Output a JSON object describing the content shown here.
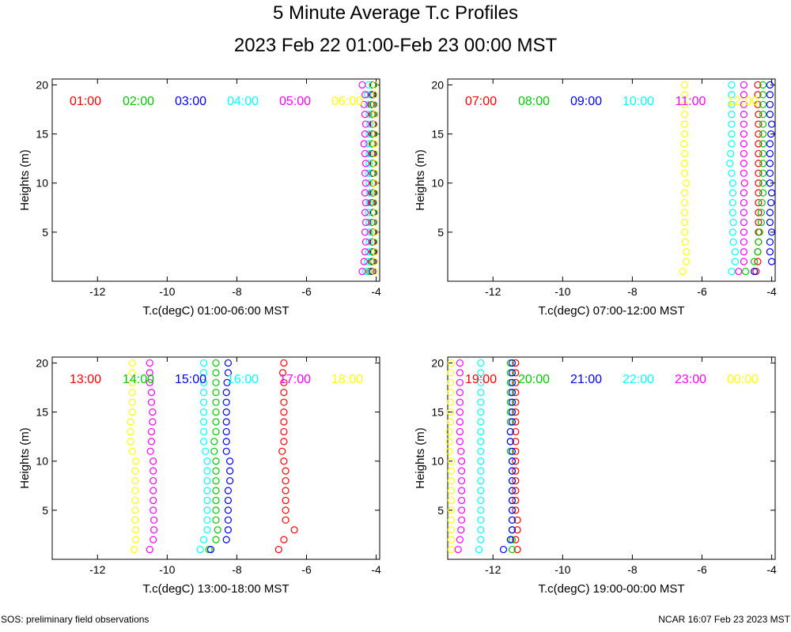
{
  "title": "5 Minute Average T.c Profiles",
  "subtitle": "2023 Feb 22 01:00-Feb 23 00:00 MST",
  "footer_left": "SOS: preliminary field observations",
  "footer_right": "NCAR 16:07 Feb 23 2023 MST",
  "chart_data": [
    {
      "type": "scatter",
      "xlabel": "T.c(degC) 01:00-06:00 MST",
      "ylabel": "Heights (m)",
      "xlim": [
        -13.3,
        -3.9
      ],
      "ylim": [
        0,
        20.6
      ],
      "xticks": [
        -12,
        -10,
        -8,
        -6,
        -4
      ],
      "yticks": [
        5,
        10,
        15,
        20
      ],
      "series": [
        {
          "name": "01:00",
          "color": "#ff0000",
          "x": [
            -4.15,
            -4.12,
            -4.1,
            -4.12,
            -4.1,
            -4.13,
            -4.1,
            -4.15,
            -4.12,
            -4.1,
            -4.12,
            -4.1,
            -4.13,
            -4.1,
            -4.12,
            -4.1,
            -4.12,
            -4.15,
            -4.12,
            -4.1
          ]
        },
        {
          "name": "02:00",
          "color": "#00cc00",
          "x": [
            -4.2,
            -4.15,
            -4.12,
            -4.1,
            -4.08,
            -4.12,
            -4.1,
            -4.12,
            -4.1,
            -4.08,
            -4.12,
            -4.1,
            -4.1,
            -4.12,
            -4.1,
            -4.08,
            -4.1,
            -4.12,
            -4.15,
            -4.1
          ]
        },
        {
          "name": "03:00",
          "color": "#0000ff",
          "x": [
            -4.1,
            -4.08,
            -4.07,
            -4.08,
            -4.06,
            -4.08,
            -4.07,
            -4.09,
            -4.07,
            -4.06,
            -4.08,
            -4.07,
            -4.08,
            -4.06,
            -4.07,
            -4.08,
            -4.06,
            -4.08,
            -4.09,
            -4.07
          ]
        },
        {
          "name": "04:00",
          "color": "#00ffff",
          "x": [
            -4.3,
            -4.25,
            -4.22,
            -4.2,
            -4.18,
            -4.2,
            -4.22,
            -4.2,
            -4.18,
            -4.2,
            -4.22,
            -4.2,
            -4.2,
            -4.22,
            -4.2,
            -4.18,
            -4.2,
            -4.22,
            -4.25,
            -4.22
          ]
        },
        {
          "name": "05:00",
          "color": "#ff00ff",
          "x": [
            -4.4,
            -4.35,
            -4.32,
            -4.3,
            -4.32,
            -4.3,
            -4.32,
            -4.3,
            -4.32,
            -4.3,
            -4.32,
            -4.3,
            -4.32,
            -4.35,
            -4.32,
            -4.3,
            -4.32,
            -4.35,
            -4.32,
            -4.4
          ]
        },
        {
          "name": "06:00",
          "color": "#ffff00",
          "x": [
            -4.05,
            -4.05,
            -4.04,
            -4.05,
            -4.04,
            -4.05,
            -4.04,
            -4.05,
            -4.04,
            -4.05,
            -4.04,
            -4.05,
            -4.04,
            -4.05,
            -4.04,
            -4.05,
            -4.04,
            -4.05,
            -4.04,
            -4.05
          ]
        }
      ]
    },
    {
      "type": "scatter",
      "xlabel": "T.c(degC) 07:00-12:00 MST",
      "ylabel": "Heights (m)",
      "xlim": [
        -13.3,
        -3.9
      ],
      "ylim": [
        0,
        20.6
      ],
      "xticks": [
        -12,
        -10,
        -8,
        -6,
        -4
      ],
      "yticks": [
        5,
        10,
        15,
        20
      ],
      "series": [
        {
          "name": "07:00",
          "color": "#ff0000",
          "x": [
            -4.45,
            -4.4,
            -4.4,
            -4.38,
            -4.38,
            -4.38,
            -4.38,
            -4.38,
            -4.38,
            -4.38,
            -4.38,
            -4.38,
            -4.38,
            -4.38,
            -4.38,
            -4.38,
            -4.38,
            -4.4,
            -4.4,
            -4.4
          ]
        },
        {
          "name": "08:00",
          "color": "#00cc00",
          "x": [
            -4.75,
            -4.5,
            -4.4,
            -4.38,
            -4.35,
            -4.3,
            -4.3,
            -4.28,
            -4.25,
            -4.25,
            -4.25,
            -4.25,
            -4.25,
            -4.25,
            -4.25,
            -4.25,
            -4.25,
            -4.25,
            -4.25,
            -4.25
          ]
        },
        {
          "name": "09:00",
          "color": "#0000ff",
          "x": [
            -4.5,
            -4.0,
            -4.05,
            -4.05,
            -4.0,
            -4.05,
            -4.05,
            -4.02,
            -4.0,
            -4.05,
            -4.05,
            -4.05,
            -4.05,
            -4.05,
            -4.02,
            -4.0,
            -4.05,
            -4.05,
            -4.05,
            -4.05
          ]
        },
        {
          "name": "10:00",
          "color": "#00ffff",
          "x": [
            -5.15,
            -5.05,
            -5.05,
            -5.1,
            -5.12,
            -5.1,
            -5.12,
            -5.12,
            -5.12,
            -5.12,
            -5.15,
            -5.2,
            -5.18,
            -5.15,
            -5.15,
            -5.15,
            -5.15,
            -5.15,
            -5.15,
            -5.15
          ]
        },
        {
          "name": "11:00",
          "color": "#ff00ff",
          "x": [
            -4.95,
            -4.8,
            -4.8,
            -4.8,
            -4.8,
            -4.8,
            -4.8,
            -4.8,
            -4.8,
            -4.78,
            -4.8,
            -4.8,
            -4.8,
            -4.8,
            -4.8,
            -4.8,
            -4.8,
            -4.8,
            -4.8,
            -4.8
          ]
        },
        {
          "name": "12:00",
          "color": "#ffff00",
          "x": [
            -6.55,
            -6.45,
            -6.45,
            -6.48,
            -6.5,
            -6.5,
            -6.5,
            -6.5,
            -6.5,
            -6.45,
            -6.5,
            -6.5,
            -6.5,
            -6.52,
            -6.5,
            -6.5,
            -6.5,
            -6.5,
            -6.5,
            -6.5
          ]
        }
      ]
    },
    {
      "type": "scatter",
      "xlabel": "T.c(degC) 13:00-18:00 MST",
      "ylabel": "Heights (m)",
      "xlim": [
        -13.3,
        -3.9
      ],
      "ylim": [
        0,
        20.6
      ],
      "xticks": [
        -12,
        -10,
        -8,
        -6,
        -4
      ],
      "yticks": [
        5,
        10,
        15,
        20
      ],
      "series": [
        {
          "name": "13:00",
          "color": "#ff0000",
          "x": [
            -6.8,
            -6.65,
            -6.35,
            -6.6,
            -6.6,
            -6.6,
            -6.6,
            -6.6,
            -6.6,
            -6.65,
            -6.7,
            -6.65,
            -6.65,
            -6.65,
            -6.65,
            -6.65,
            -6.65,
            -6.65,
            -6.68,
            -6.65
          ]
        },
        {
          "name": "14:00",
          "color": "#00cc00",
          "x": [
            -8.8,
            -8.6,
            -8.55,
            -8.6,
            -8.6,
            -8.6,
            -8.6,
            -8.6,
            -8.6,
            -8.6,
            -8.65,
            -8.65,
            -8.6,
            -8.6,
            -8.6,
            -8.6,
            -8.6,
            -8.6,
            -8.6,
            -8.6
          ]
        },
        {
          "name": "15:00",
          "color": "#0000ff",
          "x": [
            -8.75,
            -8.3,
            -8.25,
            -8.25,
            -8.25,
            -8.25,
            -8.25,
            -8.2,
            -8.2,
            -8.2,
            -8.3,
            -8.3,
            -8.3,
            -8.3,
            -8.3,
            -8.3,
            -8.3,
            -8.28,
            -8.25,
            -8.25
          ]
        },
        {
          "name": "16:00",
          "color": "#00ffff",
          "x": [
            -9.05,
            -8.95,
            -8.85,
            -8.85,
            -8.85,
            -8.85,
            -8.85,
            -8.85,
            -8.85,
            -8.85,
            -8.9,
            -8.95,
            -8.95,
            -8.95,
            -8.95,
            -8.95,
            -8.95,
            -8.95,
            -8.95,
            -8.95
          ]
        },
        {
          "name": "17:00",
          "color": "#ff00ff",
          "x": [
            -10.5,
            -10.4,
            -10.38,
            -10.38,
            -10.4,
            -10.4,
            -10.4,
            -10.4,
            -10.4,
            -10.4,
            -10.48,
            -10.45,
            -10.45,
            -10.42,
            -10.42,
            -10.45,
            -10.45,
            -10.5,
            -10.5,
            -10.5
          ]
        },
        {
          "name": "18:00",
          "color": "#ffff00",
          "x": [
            -10.95,
            -10.9,
            -10.9,
            -10.92,
            -10.92,
            -10.92,
            -10.92,
            -10.92,
            -10.92,
            -10.9,
            -11.0,
            -11.05,
            -11.05,
            -11.05,
            -11.0,
            -11.0,
            -11.0,
            -11.0,
            -11.0,
            -11.0
          ]
        }
      ]
    },
    {
      "type": "scatter",
      "xlabel": "T.c(degC) 19:00-00:00 MST",
      "ylabel": "Heights (m)",
      "xlim": [
        -13.3,
        -3.9
      ],
      "ylim": [
        0,
        20.6
      ],
      "xticks": [
        -12,
        -10,
        -8,
        -6,
        -4
      ],
      "yticks": [
        5,
        10,
        15,
        20
      ],
      "series": [
        {
          "name": "19:00",
          "color": "#ff0000",
          "x": [
            -11.3,
            -11.35,
            -11.3,
            -11.3,
            -11.35,
            -11.35,
            -11.35,
            -11.35,
            -11.35,
            -11.35,
            -11.35,
            -11.35,
            -11.35,
            -11.35,
            -11.35,
            -11.35,
            -11.35,
            -11.35,
            -11.35,
            -11.35
          ]
        },
        {
          "name": "20:00",
          "color": "#00cc00",
          "x": [
            -11.45,
            -11.45,
            -11.45,
            -11.45,
            -11.45,
            -11.45,
            -11.45,
            -11.45,
            -11.45,
            -11.45,
            -11.5,
            -11.5,
            -11.5,
            -11.5,
            -11.5,
            -11.5,
            -11.5,
            -11.5,
            -11.5,
            -11.5
          ]
        },
        {
          "name": "21:00",
          "color": "#0000ff",
          "x": [
            -11.7,
            -11.5,
            -11.45,
            -11.45,
            -11.45,
            -11.45,
            -11.45,
            -11.45,
            -11.45,
            -11.45,
            -11.45,
            -11.5,
            -11.5,
            -11.45,
            -11.45,
            -11.45,
            -11.45,
            -11.45,
            -11.45,
            -11.45
          ]
        },
        {
          "name": "22:00",
          "color": "#00ffff",
          "x": [
            -12.4,
            -12.35,
            -12.35,
            -12.35,
            -12.35,
            -12.35,
            -12.35,
            -12.35,
            -12.35,
            -12.35,
            -12.35,
            -12.35,
            -12.35,
            -12.35,
            -12.35,
            -12.35,
            -12.35,
            -12.35,
            -12.35,
            -12.35
          ]
        },
        {
          "name": "23:00",
          "color": "#ff00ff",
          "x": [
            -13.0,
            -12.95,
            -12.92,
            -12.9,
            -12.9,
            -12.9,
            -12.9,
            -12.9,
            -12.9,
            -12.9,
            -12.92,
            -12.95,
            -12.95,
            -12.95,
            -12.95,
            -12.95,
            -12.95,
            -12.95,
            -12.95,
            -12.95
          ]
        },
        {
          "name": "00:00",
          "color": "#ffff00",
          "x": [
            -13.2,
            -13.2,
            -13.2,
            -13.2,
            -13.2,
            -13.2,
            -13.2,
            -13.2,
            -13.2,
            -13.2,
            -13.25,
            -13.25,
            -13.25,
            -13.22,
            -13.22,
            -13.22,
            -13.22,
            -13.22,
            -13.22,
            -13.2
          ]
        }
      ]
    }
  ]
}
